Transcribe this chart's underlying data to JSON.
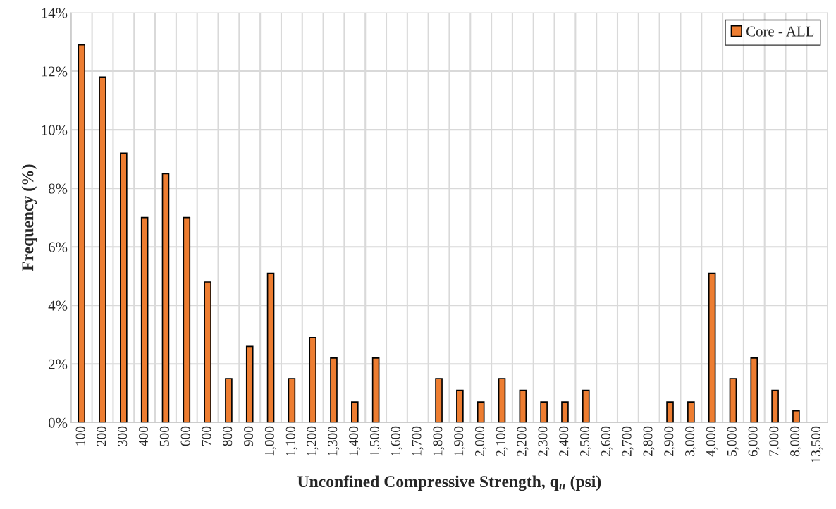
{
  "chart_data": {
    "type": "bar",
    "xlabel": "Unconfined Compressive Strength, q$_{u}$ (psi)",
    "ylabel": "Frequency (%)",
    "categories": [
      "100",
      "200",
      "300",
      "400",
      "500",
      "600",
      "700",
      "800",
      "900",
      "1,000",
      "1,100",
      "1,200",
      "1,300",
      "1,400",
      "1,500",
      "1,600",
      "1,700",
      "1,800",
      "1,900",
      "2,000",
      "2,100",
      "2,200",
      "2,300",
      "2,400",
      "2,500",
      "2,600",
      "2,700",
      "2,800",
      "2,900",
      "3,000",
      "4,000",
      "5,000",
      "6,000",
      "7,000",
      "8,000",
      "13,500"
    ],
    "series": [
      {
        "name": "Core - ALL",
        "color": "#ed7d31",
        "values": [
          12.9,
          11.8,
          9.2,
          7.0,
          8.5,
          7.0,
          4.8,
          1.5,
          2.6,
          5.1,
          1.5,
          2.9,
          2.2,
          0.7,
          2.2,
          0,
          0,
          1.5,
          1.1,
          0.7,
          1.5,
          1.1,
          0.7,
          0.7,
          1.1,
          0,
          0,
          0,
          0.7,
          0.7,
          5.1,
          1.5,
          2.2,
          1.1,
          0.4,
          0
        ]
      }
    ],
    "ylim": [
      0,
      14
    ],
    "yticks": [
      {
        "value": 0,
        "label": "0%"
      },
      {
        "value": 2,
        "label": "2%"
      },
      {
        "value": 4,
        "label": "4%"
      },
      {
        "value": 6,
        "label": "6%"
      },
      {
        "value": 8,
        "label": "8%"
      },
      {
        "value": 10,
        "label": "10%"
      },
      {
        "value": 12,
        "label": "12%"
      },
      {
        "value": 14,
        "label": "14%"
      }
    ],
    "grid": true,
    "legend": "top right"
  }
}
